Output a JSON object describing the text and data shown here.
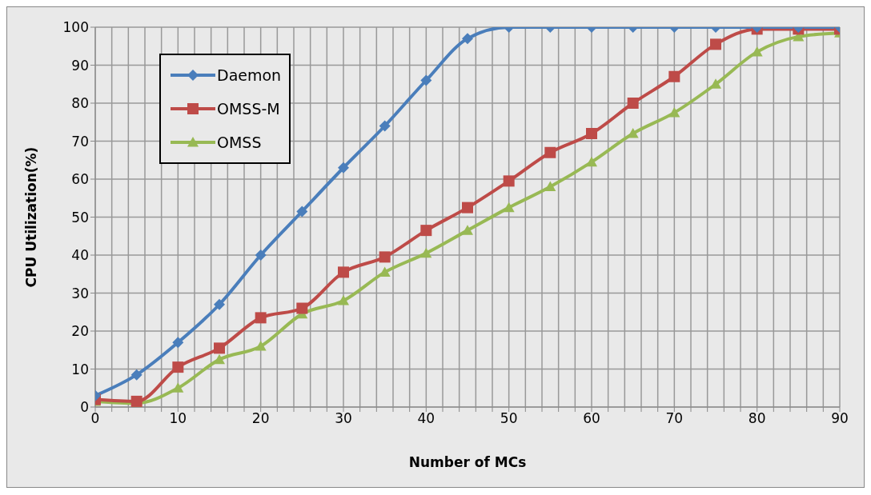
{
  "chart_data": {
    "type": "line",
    "xlabel": "Number of MCs",
    "ylabel": "CPU Utilization(%)",
    "x": [
      0,
      5,
      10,
      15,
      20,
      25,
      30,
      35,
      40,
      45,
      50,
      55,
      60,
      65,
      70,
      75,
      80,
      85,
      90
    ],
    "xlim": [
      0,
      90
    ],
    "xticks": [
      0,
      {
        "value": 2,
        "label": null
      },
      {
        "value": 4,
        "label": null
      },
      {
        "value": 6,
        "label": null
      },
      {
        "value": 8,
        "label": null
      },
      10,
      {
        "value": 12,
        "label": null
      },
      {
        "value": 14,
        "label": null
      },
      {
        "value": 16,
        "label": null
      },
      {
        "value": 18,
        "label": null
      },
      20,
      {
        "value": 22,
        "label": null
      },
      {
        "value": 24,
        "label": null
      },
      {
        "value": 26,
        "label": null
      },
      {
        "value": 28,
        "label": null
      },
      30,
      {
        "value": 32,
        "label": null
      },
      {
        "value": 34,
        "label": null
      },
      {
        "value": 36,
        "label": null
      },
      {
        "value": 38,
        "label": null
      },
      40,
      {
        "value": 42,
        "label": null
      },
      {
        "value": 44,
        "label": null
      },
      {
        "value": 46,
        "label": null
      },
      {
        "value": 48,
        "label": null
      },
      50,
      {
        "value": 52,
        "label": null
      },
      {
        "value": 54,
        "label": null
      },
      {
        "value": 56,
        "label": null
      },
      {
        "value": 58,
        "label": null
      },
      60,
      {
        "value": 62,
        "label": null
      },
      {
        "value": 64,
        "label": null
      },
      {
        "value": 66,
        "label": null
      },
      {
        "value": 68,
        "label": null
      },
      70,
      {
        "value": 72,
        "label": null
      },
      {
        "value": 74,
        "label": null
      },
      {
        "value": 76,
        "label": null
      },
      {
        "value": 78,
        "label": null
      },
      80,
      {
        "value": 82,
        "label": null
      },
      {
        "value": 84,
        "label": null
      },
      {
        "value": 86,
        "label": null
      },
      {
        "value": 88,
        "label": null
      },
      90
    ],
    "ylim": [
      0,
      100
    ],
    "yticks": [
      0,
      10,
      20,
      30,
      40,
      50,
      60,
      70,
      80,
      90,
      100
    ],
    "grid": true,
    "legend": "top left",
    "series": [
      {
        "name": "Daemon",
        "color": "#4a7ebb",
        "marker": "diamond",
        "values": [
          3,
          8.5,
          17,
          27,
          40,
          51.5,
          63,
          74,
          86,
          97,
          100,
          100,
          100,
          100,
          100,
          100,
          100,
          100,
          100
        ]
      },
      {
        "name": "OMSS-M",
        "color": "#be4b48",
        "marker": "square",
        "values": [
          2,
          1.5,
          10.5,
          15.5,
          23.5,
          26,
          35.5,
          39.5,
          46.5,
          52.5,
          59.5,
          67,
          72,
          80,
          87,
          95.5,
          99.5,
          99.5,
          99.5
        ]
      },
      {
        "name": "OMSS",
        "color": "#98b954",
        "marker": "triangle",
        "values": [
          1.5,
          1,
          5,
          12.5,
          16,
          24.5,
          28,
          35.5,
          40.5,
          46.5,
          52.5,
          58,
          64.5,
          72,
          77.5,
          85,
          93.5,
          97.5,
          98.5
        ]
      }
    ]
  }
}
